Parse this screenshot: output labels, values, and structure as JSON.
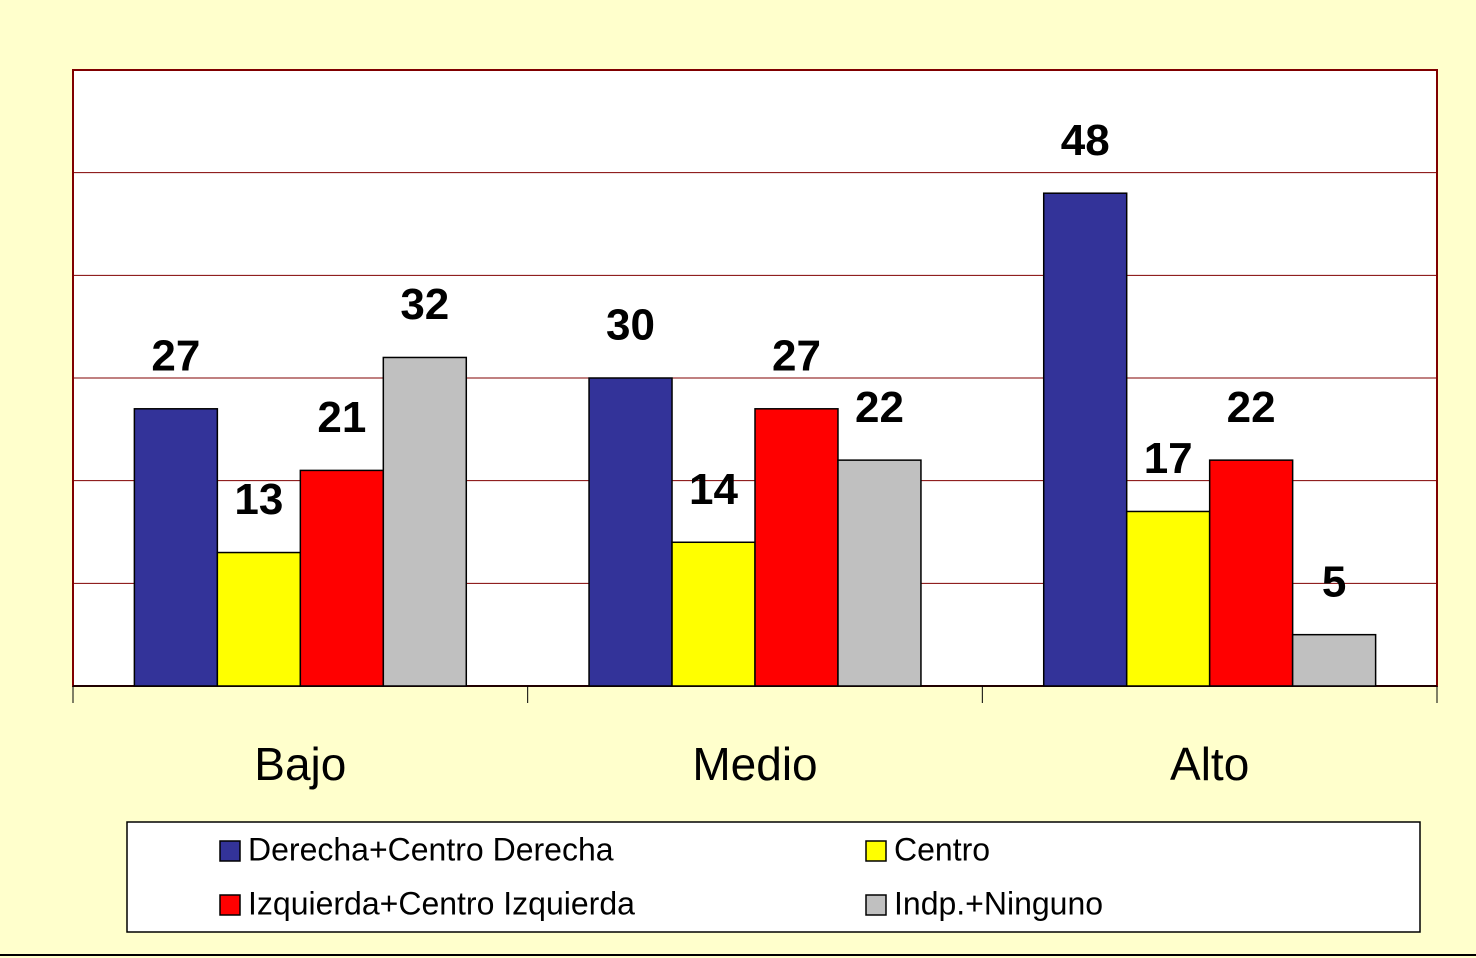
{
  "chart_data": {
    "type": "bar",
    "categories": [
      "Bajo",
      "Medio",
      "Alto"
    ],
    "series": [
      {
        "name": "Derecha+Centro Derecha",
        "color": "#333399",
        "values": [
          27,
          30,
          48
        ]
      },
      {
        "name": "Centro",
        "color": "#ffff00",
        "values": [
          13,
          14,
          17
        ]
      },
      {
        "name": "Izquierda+Centro Izquierda",
        "color": "#ff0000",
        "values": [
          21,
          27,
          22
        ]
      },
      {
        "name": "Indp.+Ninguno",
        "color": "#c0c0c0",
        "values": [
          32,
          22,
          5
        ]
      }
    ],
    "ylim": [
      0,
      60
    ],
    "yticks": [
      0,
      10,
      20,
      30,
      40,
      50,
      60
    ],
    "grid": true,
    "legend": "bottom"
  }
}
